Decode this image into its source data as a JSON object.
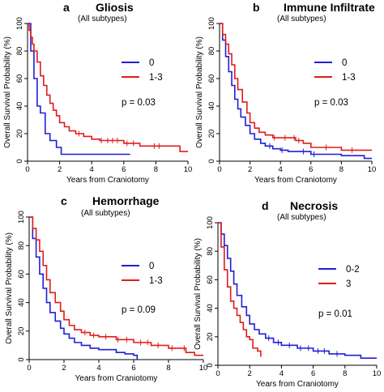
{
  "figure": {
    "shared_xlabel": "Years from Craniotomy",
    "shared_ylabel": "Overall Survival Probability (%)"
  },
  "chart_data": [
    {
      "type": "line",
      "letter": "a",
      "title": "Gliosis",
      "subtitle": "(All subtypes)",
      "xlabel": "Years from Craniotomy",
      "ylabel": "Overall Survival Probability (%)",
      "xlim": [
        0,
        10
      ],
      "ylim": [
        0,
        100
      ],
      "xticks": [
        0,
        2,
        4,
        6,
        8,
        10
      ],
      "yticks": [
        0,
        20,
        40,
        60,
        80,
        100
      ],
      "legend_position": "top-right",
      "pvalue": "p = 0.03",
      "series": [
        {
          "name": "0",
          "color": "#1f1fd6",
          "x": [
            0,
            0.2,
            0.4,
            0.6,
            0.8,
            1.1,
            1.4,
            1.8,
            2.1,
            6.4
          ],
          "y": [
            100,
            80,
            60,
            40,
            35,
            20,
            15,
            10,
            5,
            5
          ],
          "censor_x": []
        },
        {
          "name": "1-3",
          "color": "#e01c1c",
          "x": [
            0,
            0.1,
            0.2,
            0.3,
            0.4,
            0.6,
            0.8,
            1.0,
            1.2,
            1.4,
            1.6,
            1.8,
            2.0,
            2.3,
            2.6,
            3.0,
            3.5,
            4.0,
            4.5,
            6.0,
            7.0,
            9.5,
            10.0
          ],
          "y": [
            100,
            95,
            90,
            85,
            80,
            72,
            62,
            55,
            48,
            42,
            37,
            33,
            28,
            25,
            22,
            20,
            18,
            16,
            15,
            13,
            11,
            7,
            7
          ],
          "censor_x": [
            3.2,
            4.6,
            5.0,
            5.3,
            5.6,
            6.2,
            6.6,
            7.9,
            8.2
          ]
        }
      ]
    },
    {
      "type": "line",
      "letter": "b",
      "title": "Immune Infiltrate",
      "subtitle": "(All subtypes)",
      "xlabel": "Years from Craniotomy",
      "ylabel": "Overall Survival Probability (%)",
      "xlim": [
        0,
        10
      ],
      "ylim": [
        0,
        100
      ],
      "xticks": [
        0,
        2,
        4,
        6,
        8,
        10
      ],
      "yticks": [
        0,
        20,
        40,
        60,
        80,
        100
      ],
      "legend_position": "top-right",
      "pvalue": "p = 0.03",
      "series": [
        {
          "name": "0",
          "color": "#1f1fd6",
          "x": [
            0,
            0.2,
            0.4,
            0.6,
            0.8,
            1.0,
            1.2,
            1.4,
            1.7,
            2.0,
            2.3,
            2.7,
            3.0,
            3.5,
            4.0,
            4.5,
            6.0,
            8.0,
            9.5,
            10.0
          ],
          "y": [
            100,
            88,
            76,
            65,
            55,
            45,
            38,
            32,
            26,
            20,
            16,
            13,
            11,
            9,
            8,
            7,
            5,
            4,
            2,
            2
          ],
          "censor_x": [
            3.3,
            4.1,
            5.5,
            6.2
          ]
        },
        {
          "name": "1-3",
          "color": "#e01c1c",
          "x": [
            0,
            0.2,
            0.4,
            0.6,
            0.8,
            1.0,
            1.2,
            1.5,
            1.8,
            2.0,
            2.3,
            2.6,
            3.0,
            3.5,
            4.0,
            5.0,
            5.5,
            6.0,
            8.0,
            10.0
          ],
          "y": [
            100,
            92,
            85,
            78,
            70,
            60,
            52,
            43,
            35,
            28,
            24,
            21,
            19,
            17,
            17,
            15,
            13,
            10,
            8,
            8
          ],
          "censor_x": [
            3.6,
            4.3,
            4.9,
            5.2,
            7.0,
            8.7
          ]
        }
      ]
    },
    {
      "type": "line",
      "letter": "c",
      "title": "Hemorrhage",
      "subtitle": "(All subtypes)",
      "xlabel": "Years from Craniotomy",
      "ylabel": "Overall Survival Probability (%)",
      "xlim": [
        0,
        10
      ],
      "ylim": [
        0,
        100
      ],
      "xticks": [
        0,
        2,
        4,
        6,
        8,
        10
      ],
      "yticks": [
        0,
        20,
        40,
        60,
        80,
        100
      ],
      "legend_position": "top-right",
      "pvalue": "p = 0.09",
      "series": [
        {
          "name": "0",
          "color": "#1f1fd6",
          "x": [
            0,
            0.2,
            0.4,
            0.6,
            0.8,
            1.0,
            1.2,
            1.5,
            1.8,
            2.0,
            2.3,
            2.6,
            3.0,
            3.5,
            4.0,
            5.0,
            5.5,
            6.0,
            6.2
          ],
          "y": [
            100,
            85,
            72,
            60,
            50,
            40,
            33,
            27,
            22,
            18,
            15,
            12,
            10,
            8,
            7,
            5,
            4,
            3,
            0
          ],
          "censor_x": []
        },
        {
          "name": "1-3",
          "color": "#e01c1c",
          "x": [
            0,
            0.2,
            0.4,
            0.6,
            0.8,
            1.0,
            1.2,
            1.5,
            1.8,
            2.0,
            2.3,
            2.6,
            3.0,
            3.5,
            4.0,
            5.0,
            6.0,
            7.0,
            8.0,
            9.0,
            9.5,
            10.0
          ],
          "y": [
            100,
            92,
            84,
            76,
            66,
            56,
            47,
            40,
            34,
            28,
            24,
            21,
            19,
            17,
            16,
            14,
            12,
            10,
            8,
            5,
            3,
            3
          ],
          "censor_x": [
            3.2,
            3.7,
            4.4,
            5.1,
            5.6,
            6.4,
            6.8,
            7.4,
            8.2,
            8.9
          ]
        }
      ]
    },
    {
      "type": "line",
      "letter": "d",
      "title": "Necrosis",
      "subtitle": "(All subtypes)",
      "xlabel": "Years from Craniotomy",
      "ylabel": "Overall Survival Probability (%)",
      "xlim": [
        0,
        10
      ],
      "ylim": [
        0,
        100
      ],
      "xticks": [
        0,
        2,
        4,
        6,
        8,
        10
      ],
      "yticks": [
        0,
        20,
        40,
        60,
        80,
        100
      ],
      "legend_position": "top-right",
      "pvalue": "p = 0.01",
      "series": [
        {
          "name": "0-2",
          "color": "#1f1fd6",
          "x": [
            0,
            0.2,
            0.4,
            0.6,
            0.8,
            1.0,
            1.2,
            1.5,
            1.8,
            2.0,
            2.3,
            2.6,
            3.0,
            3.5,
            4.0,
            5.0,
            6.0,
            7.0,
            8.0,
            9.0,
            10.0
          ],
          "y": [
            100,
            92,
            84,
            75,
            66,
            57,
            49,
            41,
            35,
            29,
            25,
            22,
            19,
            16,
            14,
            12,
            10,
            8,
            7,
            5,
            5
          ],
          "censor_x": [
            3.2,
            3.8,
            4.5,
            5.2,
            5.7,
            6.3,
            6.7,
            7.5
          ]
        },
        {
          "name": "3",
          "color": "#e01c1c",
          "x": [
            0,
            0.2,
            0.4,
            0.6,
            0.8,
            1.0,
            1.2,
            1.4,
            1.6,
            1.8,
            2.0,
            2.2,
            2.5,
            2.7
          ],
          "y": [
            100,
            83,
            67,
            55,
            45,
            40,
            35,
            30,
            25,
            20,
            18,
            12,
            10,
            6
          ],
          "censor_x": []
        }
      ]
    }
  ]
}
